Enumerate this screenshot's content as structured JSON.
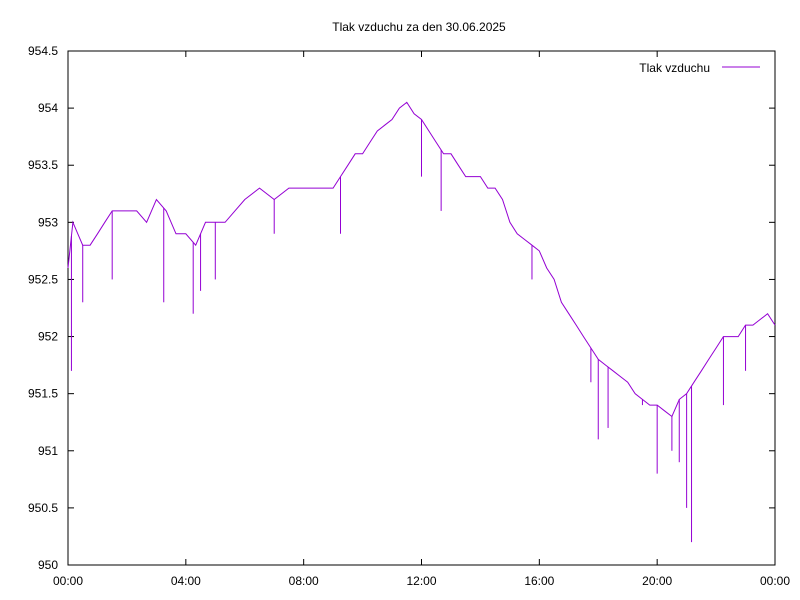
{
  "chart_data": {
    "type": "line",
    "title": "Tlak vzduchu za den 30.06.2025",
    "xlabel": "",
    "ylabel": "",
    "xlim": [
      "00:00",
      "24:00"
    ],
    "ylim": [
      950,
      954.5
    ],
    "x_tick_labels": [
      "00:00",
      "04:00",
      "08:00",
      "12:00",
      "16:00",
      "20:00",
      "00:00"
    ],
    "y_tick_labels": [
      "950",
      "950.5",
      "951",
      "951.5",
      "952",
      "952.5",
      "953",
      "953.5",
      "954",
      "954.5"
    ],
    "grid": false,
    "legend_position": "top-right",
    "series": [
      {
        "name": "Tlak vzduchu",
        "color": "#9400d3",
        "x": [
          "00:00",
          "00:10",
          "00:20",
          "00:30",
          "00:45",
          "01:00",
          "01:15",
          "01:30",
          "01:45",
          "02:00",
          "02:20",
          "02:40",
          "03:00",
          "03:20",
          "03:40",
          "04:00",
          "04:20",
          "04:40",
          "05:00",
          "05:20",
          "05:40",
          "06:00",
          "06:30",
          "07:00",
          "07:30",
          "08:00",
          "08:30",
          "09:00",
          "09:15",
          "09:30",
          "09:45",
          "10:00",
          "10:15",
          "10:30",
          "10:45",
          "11:00",
          "11:15",
          "11:30",
          "11:45",
          "12:00",
          "12:15",
          "12:30",
          "12:45",
          "13:00",
          "13:15",
          "13:30",
          "13:45",
          "14:00",
          "14:15",
          "14:30",
          "14:45",
          "15:00",
          "15:15",
          "15:30",
          "15:45",
          "16:00",
          "16:15",
          "16:30",
          "16:45",
          "17:00",
          "17:15",
          "17:30",
          "17:45",
          "18:00",
          "18:15",
          "18:30",
          "18:45",
          "19:00",
          "19:15",
          "19:30",
          "19:45",
          "20:00",
          "20:15",
          "20:30",
          "20:45",
          "21:00",
          "21:15",
          "21:30",
          "21:45",
          "22:00",
          "22:15",
          "22:30",
          "22:45",
          "23:00",
          "23:15",
          "23:30",
          "23:45",
          "24:00"
        ],
        "values": [
          952.6,
          953.0,
          952.9,
          952.8,
          952.8,
          952.9,
          953.0,
          953.1,
          953.1,
          953.1,
          953.1,
          953.0,
          953.2,
          953.1,
          952.9,
          952.9,
          952.8,
          953.0,
          953.0,
          953.0,
          953.1,
          953.2,
          953.3,
          953.2,
          953.3,
          953.3,
          953.3,
          953.3,
          953.4,
          953.5,
          953.6,
          953.6,
          953.7,
          953.8,
          953.85,
          953.9,
          954.0,
          954.05,
          953.95,
          953.9,
          953.8,
          953.7,
          953.6,
          953.6,
          953.5,
          953.4,
          953.4,
          953.4,
          953.3,
          953.3,
          953.2,
          953.0,
          952.9,
          952.85,
          952.8,
          952.75,
          952.6,
          952.5,
          952.3,
          952.2,
          952.1,
          952.0,
          951.9,
          951.8,
          951.75,
          951.7,
          951.65,
          951.6,
          951.5,
          951.45,
          951.4,
          951.4,
          951.35,
          951.3,
          951.45,
          951.5,
          951.6,
          951.7,
          951.8,
          951.9,
          952.0,
          952.0,
          952.0,
          952.1,
          952.1,
          952.15,
          952.2,
          952.1
        ],
        "spikes": [
          {
            "x": "00:07",
            "y": 951.7
          },
          {
            "x": "00:30",
            "y": 952.3
          },
          {
            "x": "01:00",
            "y": 952.9
          },
          {
            "x": "01:30",
            "y": 952.5
          },
          {
            "x": "03:15",
            "y": 952.3
          },
          {
            "x": "04:15",
            "y": 952.2
          },
          {
            "x": "04:30",
            "y": 952.4
          },
          {
            "x": "05:00",
            "y": 952.5
          },
          {
            "x": "07:00",
            "y": 952.9
          },
          {
            "x": "09:15",
            "y": 952.9
          },
          {
            "x": "12:00",
            "y": 953.4
          },
          {
            "x": "12:40",
            "y": 953.1
          },
          {
            "x": "15:45",
            "y": 952.5
          },
          {
            "x": "17:45",
            "y": 951.6
          },
          {
            "x": "18:00",
            "y": 951.1
          },
          {
            "x": "18:20",
            "y": 951.2
          },
          {
            "x": "19:30",
            "y": 951.4
          },
          {
            "x": "20:00",
            "y": 950.8
          },
          {
            "x": "20:30",
            "y": 951.0
          },
          {
            "x": "20:45",
            "y": 950.9
          },
          {
            "x": "21:00",
            "y": 950.5
          },
          {
            "x": "21:10",
            "y": 950.2
          },
          {
            "x": "22:15",
            "y": 951.4
          },
          {
            "x": "23:00",
            "y": 951.7
          }
        ]
      }
    ]
  }
}
